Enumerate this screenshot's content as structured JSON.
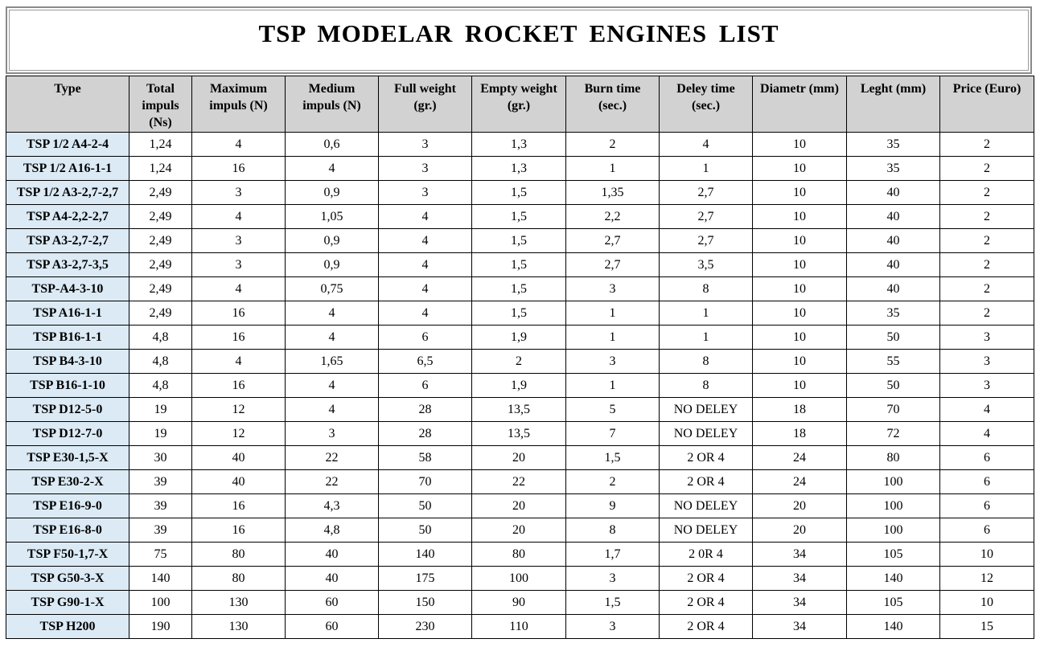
{
  "title": "TSP  MODELAR  ROCKET  ENGINES  LIST",
  "headers": [
    "Type",
    "Total impuls (Ns)",
    "Maximum impuls (N)",
    "Medium impuls (N)",
    "Full weight (gr.)",
    "Empty weight (gr.)",
    "Burn time (sec.)",
    "Deley time (sec.)",
    "Diametr (mm)",
    "Leght (mm)",
    "Price (Euro)"
  ],
  "header_lines": [
    [
      "Type"
    ],
    [
      "Total",
      "impuls",
      "(Ns)"
    ],
    [
      "Maximum",
      "impuls (N)"
    ],
    [
      "Medium",
      "impuls (N)"
    ],
    [
      "Full weight",
      "(gr.)"
    ],
    [
      "Empty weight",
      "(gr.)"
    ],
    [
      "Burn time",
      "(sec.)"
    ],
    [
      "Deley time",
      "(sec.)"
    ],
    [
      "Diametr (mm)"
    ],
    [
      "Leght (mm)"
    ],
    [
      "Price (Euro)"
    ]
  ],
  "rows": [
    [
      "TSP 1/2 A4-2-4",
      "1,24",
      "4",
      "0,6",
      "3",
      "1,3",
      "2",
      "4",
      "10",
      "35",
      "2"
    ],
    [
      "TSP 1/2 A16-1-1",
      "1,24",
      "16",
      "4",
      "3",
      "1,3",
      "1",
      "1",
      "10",
      "35",
      "2"
    ],
    [
      "TSP 1/2 A3-2,7-2,7",
      "2,49",
      "3",
      "0,9",
      "3",
      "1,5",
      "1,35",
      "2,7",
      "10",
      "40",
      "2"
    ],
    [
      "TSP A4-2,2-2,7",
      "2,49",
      "4",
      "1,05",
      "4",
      "1,5",
      "2,2",
      "2,7",
      "10",
      "40",
      "2"
    ],
    [
      "TSP A3-2,7-2,7",
      "2,49",
      "3",
      "0,9",
      "4",
      "1,5",
      "2,7",
      "2,7",
      "10",
      "40",
      "2"
    ],
    [
      "TSP A3-2,7-3,5",
      "2,49",
      "3",
      "0,9",
      "4",
      "1,5",
      "2,7",
      "3,5",
      "10",
      "40",
      "2"
    ],
    [
      "TSP-A4-3-10",
      "2,49",
      "4",
      "0,75",
      "4",
      "1,5",
      "3",
      "8",
      "10",
      "40",
      "2"
    ],
    [
      "TSP A16-1-1",
      "2,49",
      "16",
      "4",
      "4",
      "1,5",
      "1",
      "1",
      "10",
      "35",
      "2"
    ],
    [
      "TSP B16-1-1",
      "4,8",
      "16",
      "4",
      "6",
      "1,9",
      "1",
      "1",
      "10",
      "50",
      "3"
    ],
    [
      "TSP B4-3-10",
      "4,8",
      "4",
      "1,65",
      "6,5",
      "2",
      "3",
      "8",
      "10",
      "55",
      "3"
    ],
    [
      "TSP B16-1-10",
      "4,8",
      "16",
      "4",
      "6",
      "1,9",
      "1",
      "8",
      "10",
      "50",
      "3"
    ],
    [
      "TSP D12-5-0",
      "19",
      "12",
      "4",
      "28",
      "13,5",
      "5",
      "NO DELEY",
      "18",
      "70",
      "4"
    ],
    [
      "TSP D12-7-0",
      "19",
      "12",
      "3",
      "28",
      "13,5",
      "7",
      "NO DELEY",
      "18",
      "72",
      "4"
    ],
    [
      "TSP E30-1,5-X",
      "30",
      "40",
      "22",
      "58",
      "20",
      "1,5",
      "2 OR 4",
      "24",
      "80",
      "6"
    ],
    [
      "TSP E30-2-X",
      "39",
      "40",
      "22",
      "70",
      "22",
      "2",
      "2 OR 4",
      "24",
      "100",
      "6"
    ],
    [
      "TSP E16-9-0",
      "39",
      "16",
      "4,3",
      "50",
      "20",
      "9",
      "NO DELEY",
      "20",
      "100",
      "6"
    ],
    [
      "TSP E16-8-0",
      "39",
      "16",
      "4,8",
      "50",
      "20",
      "8",
      "NO DELEY",
      "20",
      "100",
      "6"
    ],
    [
      "TSP F50-1,7-X",
      "75",
      "80",
      "40",
      "140",
      "80",
      "1,7",
      "2 0R 4",
      "34",
      "105",
      "10"
    ],
    [
      "TSP G50-3-X",
      "140",
      "80",
      "40",
      "175",
      "100",
      "3",
      "2 OR 4",
      "34",
      "140",
      "12"
    ],
    [
      "TSP G90-1-X",
      "100",
      "130",
      "60",
      "150",
      "90",
      "1,5",
      "2 OR 4",
      "34",
      "105",
      "10"
    ],
    [
      "TSP H200",
      "190",
      "130",
      "60",
      "230",
      "110",
      "3",
      "2 OR 4",
      "34",
      "140",
      "15"
    ]
  ],
  "colors": {
    "header_bg": "#d2d2d2",
    "type_cell_bg": "#dbeaf5",
    "border": "#000000"
  }
}
